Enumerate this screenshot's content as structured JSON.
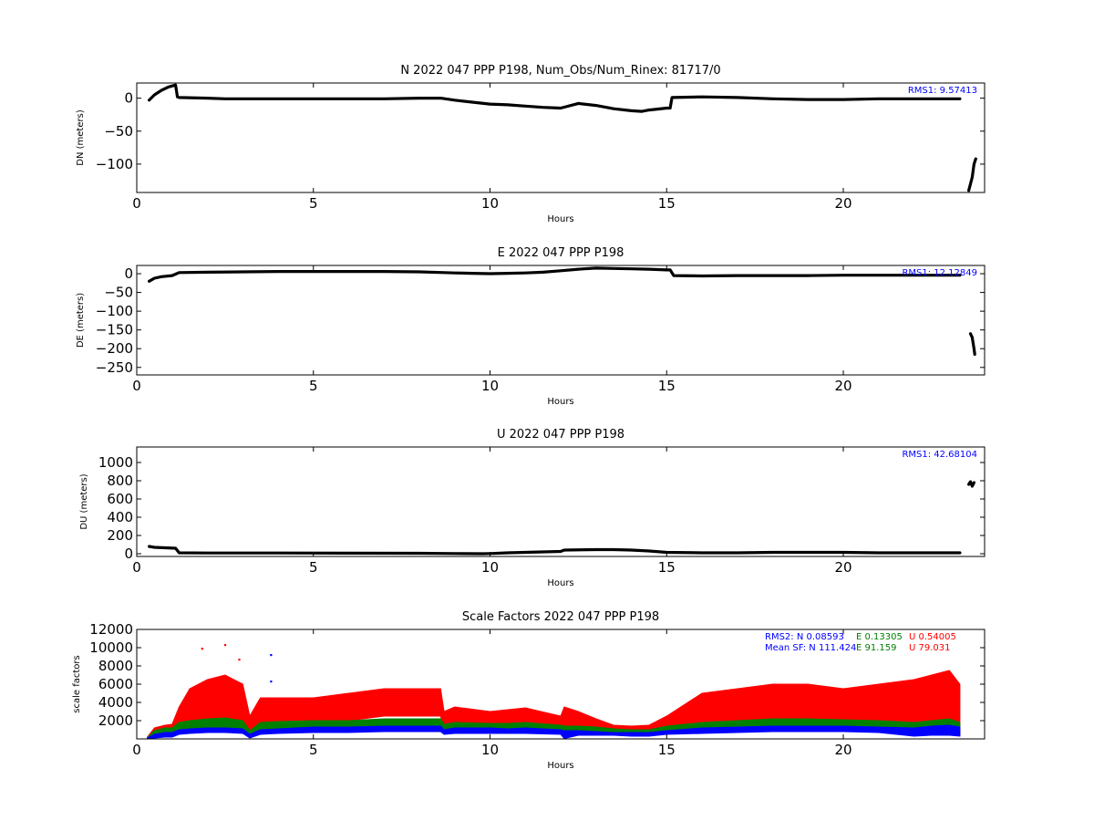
{
  "chart_data": [
    {
      "type": "line",
      "title": "N 2022 047 PPP  P198, Num_Obs/Num_Rinex: 81717/0",
      "xlabel": "Hours",
      "ylabel": "DN (meters)",
      "xlim": [
        0,
        24
      ],
      "ylim": [
        -143,
        23
      ],
      "xticks": [
        "0",
        "5",
        "10",
        "15",
        "20"
      ],
      "yticks": [
        {
          "value": 0,
          "label": "0"
        },
        {
          "value": -50,
          "label": "−50"
        },
        {
          "value": -100,
          "label": "−100"
        }
      ],
      "annotation": "RMS1:  9.57413",
      "annotation_color": "#0000ff",
      "series": [
        {
          "color": "#000000",
          "x": [
            0.35,
            0.5,
            0.7,
            0.9,
            1.1,
            1.15,
            1.2,
            2.0,
            2.5,
            3.0,
            4.0,
            5.0,
            6.0,
            7.0,
            8.0,
            8.6,
            9.0,
            9.5,
            10.0,
            10.5,
            11.0,
            11.5,
            12.0,
            12.5,
            13.0,
            13.5,
            14.0,
            14.3,
            14.5,
            15.0,
            15.1,
            15.15,
            16.0,
            17.0,
            18.0,
            19.0,
            20.0,
            21.0,
            22.0,
            23.3
          ],
          "y": [
            -3,
            5,
            12,
            17,
            20,
            2,
            1,
            0,
            -1,
            -1,
            -1,
            -1,
            -1,
            -1,
            0,
            0,
            -3,
            -6,
            -9,
            -10,
            -12,
            -14,
            -15,
            -8,
            -11,
            -16,
            -19,
            -20,
            -18,
            -15,
            -15,
            1,
            2,
            1,
            -1,
            -2,
            -2,
            -1,
            -1,
            -1
          ]
        },
        {
          "color": "#000000",
          "x": [
            23.55,
            23.6,
            23.65,
            23.7,
            23.75
          ],
          "y": [
            -140,
            -130,
            -120,
            -100,
            -92
          ]
        }
      ]
    },
    {
      "type": "line",
      "title": "E 2022 047 PPP  P198",
      "xlabel": "Hours",
      "ylabel": "DE (meters)",
      "xlim": [
        0,
        24
      ],
      "ylim": [
        -270,
        22
      ],
      "xticks": [
        "0",
        "5",
        "10",
        "15",
        "20"
      ],
      "yticks": [
        {
          "value": 0,
          "label": "0"
        },
        {
          "value": -50,
          "label": "−50"
        },
        {
          "value": -100,
          "label": "−100"
        },
        {
          "value": -150,
          "label": "−150"
        },
        {
          "value": -200,
          "label": "−200"
        },
        {
          "value": -250,
          "label": "−250"
        }
      ],
      "annotation": "RMS1: 12.12849",
      "annotation_color": "#0000ff",
      "series": [
        {
          "color": "#000000",
          "x": [
            0.35,
            0.5,
            0.7,
            1.0,
            1.2,
            2.0,
            3.0,
            4.0,
            5.0,
            6.0,
            7.0,
            8.0,
            8.7,
            9.0,
            9.5,
            10.0,
            10.5,
            11.0,
            11.5,
            12.0,
            12.5,
            13.0,
            13.5,
            14.0,
            14.5,
            15.0,
            15.1,
            15.2,
            16.0,
            17.0,
            18.0,
            19.0,
            20.0,
            21.0,
            22.0,
            23.3
          ],
          "y": [
            -20,
            -12,
            -8,
            -5,
            3,
            4,
            5,
            6,
            6,
            6,
            6,
            5,
            3,
            2,
            1,
            0,
            1,
            2,
            4,
            8,
            12,
            15,
            14,
            13,
            12,
            10,
            10,
            -5,
            -6,
            -5,
            -5,
            -5,
            -4,
            -4,
            -4,
            -4
          ]
        },
        {
          "color": "#000000",
          "x": [
            23.6,
            23.65,
            23.7,
            23.72
          ],
          "y": [
            -160,
            -170,
            -200,
            -215
          ]
        }
      ]
    },
    {
      "type": "line",
      "title": "U 2022 047 PPP  P198",
      "xlabel": "Hours",
      "ylabel": "DU (meters)",
      "xlim": [
        0,
        24
      ],
      "ylim": [
        -30,
        1170
      ],
      "xticks": [
        "0",
        "5",
        "10",
        "15",
        "20"
      ],
      "yticks": [
        {
          "value": 0,
          "label": "0"
        },
        {
          "value": 200,
          "label": "200"
        },
        {
          "value": 400,
          "label": "400"
        },
        {
          "value": 600,
          "label": "600"
        },
        {
          "value": 800,
          "label": "800"
        },
        {
          "value": 1000,
          "label": "1000"
        }
      ],
      "annotation": "RMS1: 42.68104",
      "annotation_color": "#0000ff",
      "series": [
        {
          "color": "#000000",
          "x": [
            0.35,
            0.5,
            0.8,
            1.1,
            1.2,
            2.0,
            4.0,
            6.0,
            8.0,
            9.0,
            9.8,
            10.0,
            10.5,
            11.0,
            12.0,
            12.1,
            13.0,
            13.5,
            14.0,
            14.5,
            15.0,
            16.0,
            17.0,
            18.0,
            19.0,
            20.0,
            21.0,
            22.0,
            23.3
          ],
          "y": [
            80,
            70,
            65,
            60,
            10,
            8,
            8,
            6,
            5,
            2,
            0,
            2,
            10,
            15,
            25,
            40,
            45,
            45,
            40,
            30,
            15,
            10,
            10,
            15,
            15,
            15,
            10,
            10,
            10
          ]
        },
        {
          "color": "#000000",
          "x": [
            23.55,
            23.6,
            23.65,
            23.7
          ],
          "y": [
            760,
            790,
            740,
            780
          ]
        }
      ]
    },
    {
      "type": "area",
      "title": "Scale Factors 2022 047 PPP  P198",
      "xlabel": "Hours",
      "ylabel": "scale factors",
      "xlim": [
        0,
        24
      ],
      "ylim": [
        0,
        12000
      ],
      "xticks": [
        "0",
        "5",
        "10",
        "15",
        "20"
      ],
      "yticks": [
        {
          "value": 2000,
          "label": "2000"
        },
        {
          "value": 4000,
          "label": "4000"
        },
        {
          "value": 6000,
          "label": "6000"
        },
        {
          "value": 8000,
          "label": "8000"
        },
        {
          "value": 10000,
          "label": "10000"
        },
        {
          "value": 12000,
          "label": "12000"
        }
      ],
      "stats": {
        "rms2_label": "RMS2: N",
        "mean_label": "Mean SF: N",
        "N_rms2": "0.08593",
        "N_mean": "111.424",
        "E_rms2": "E  0.13305",
        "E_mean": "E  91.159",
        "U_rms2": "U  0.54005",
        "U_mean": "U  79.031"
      },
      "x": [
        0.3,
        0.5,
        0.8,
        1.0,
        1.2,
        1.5,
        2.0,
        2.5,
        3.0,
        3.2,
        3.5,
        4.0,
        5.0,
        6.0,
        7.0,
        8.0,
        8.6,
        8.7,
        9.0,
        10.0,
        10.5,
        11.0,
        12.0,
        12.1,
        12.5,
        13.0,
        13.5,
        14.0,
        14.5,
        15.0,
        16.0,
        17.0,
        18.0,
        19.0,
        20.0,
        21.0,
        22.0,
        22.5,
        23.0,
        23.3
      ],
      "series": [
        {
          "name": "U",
          "color": "#ff0000",
          "lo": [
            0,
            200,
            500,
            600,
            1500,
            2000,
            2000,
            1800,
            1500,
            500,
            1500,
            1800,
            2000,
            2000,
            2500,
            2500,
            2500,
            1000,
            1500,
            1500,
            1500,
            1500,
            1000,
            200,
            800,
            800,
            800,
            600,
            600,
            1000,
            1500,
            2000,
            2000,
            2000,
            2000,
            1500,
            500,
            800,
            800,
            500
          ],
          "hi": [
            200,
            1200,
            1500,
            1600,
            3500,
            5500,
            6500,
            7000,
            6000,
            2500,
            4500,
            4500,
            4500,
            5000,
            5500,
            5500,
            5500,
            3000,
            3500,
            3000,
            3200,
            3400,
            2500,
            3500,
            3000,
            2200,
            1500,
            1400,
            1500,
            2500,
            5000,
            5500,
            6000,
            6000,
            5500,
            6000,
            6500,
            7000,
            7500,
            6000
          ]
        },
        {
          "name": "E",
          "color": "#008000",
          "lo": [
            0,
            200,
            400,
            400,
            800,
            1000,
            1200,
            1200,
            1000,
            300,
            900,
            1000,
            1200,
            1200,
            1300,
            1300,
            1300,
            800,
            1000,
            1000,
            1000,
            1000,
            800,
            100,
            600,
            600,
            600,
            500,
            500,
            800,
            1000,
            1200,
            1300,
            1300,
            1300,
            1100,
            400,
            600,
            600,
            400
          ],
          "hi": [
            150,
            900,
            1200,
            1200,
            1800,
            2000,
            2200,
            2300,
            2000,
            900,
            1800,
            1900,
            2000,
            2000,
            2200,
            2200,
            2200,
            1600,
            1800,
            1700,
            1700,
            1800,
            1500,
            1400,
            1400,
            1300,
            1100,
            1000,
            1000,
            1400,
            1800,
            2000,
            2200,
            2200,
            2100,
            2000,
            1800,
            2000,
            2200,
            1800
          ]
        },
        {
          "name": "N",
          "color": "#0000ff",
          "lo": [
            0,
            100,
            200,
            200,
            500,
            600,
            700,
            700,
            600,
            100,
            500,
            600,
            700,
            700,
            800,
            800,
            800,
            500,
            600,
            600,
            600,
            600,
            500,
            50,
            400,
            400,
            400,
            300,
            300,
            500,
            600,
            700,
            800,
            800,
            800,
            700,
            300,
            400,
            400,
            300
          ],
          "hi": [
            100,
            500,
            700,
            700,
            1000,
            1100,
            1200,
            1200,
            1100,
            500,
            1000,
            1100,
            1300,
            1300,
            1400,
            1400,
            1400,
            1000,
            1200,
            1200,
            1100,
            1200,
            1000,
            900,
            900,
            800,
            700,
            700,
            700,
            900,
            1200,
            1300,
            1400,
            1400,
            1400,
            1300,
            1200,
            1400,
            1500,
            1300
          ]
        }
      ],
      "outliers": [
        {
          "x": 1.85,
          "y": 9900,
          "color": "#ff0000"
        },
        {
          "x": 2.5,
          "y": 10300,
          "color": "#ff0000"
        },
        {
          "x": 2.9,
          "y": 8700,
          "color": "#ff0000"
        },
        {
          "x": 3.8,
          "y": 9200,
          "color": "#0000ff"
        },
        {
          "x": 3.8,
          "y": 6300,
          "color": "#0000ff"
        }
      ]
    }
  ]
}
